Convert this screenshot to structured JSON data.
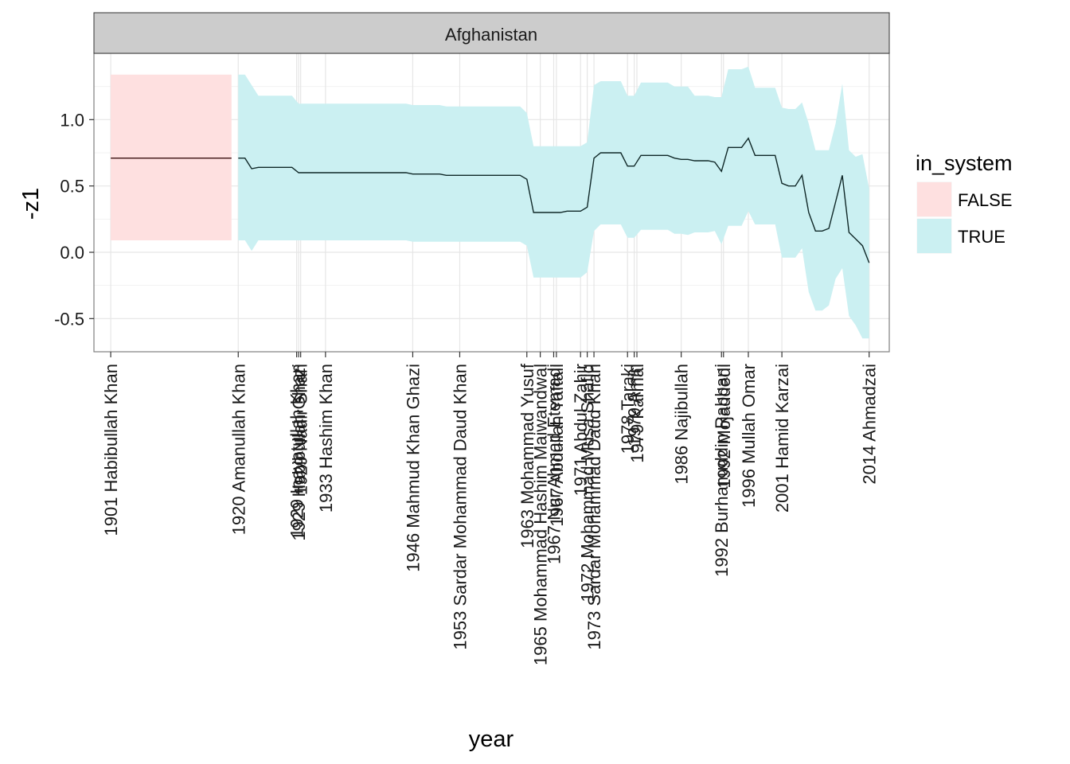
{
  "chart_data": {
    "type": "area",
    "facet_label": "Afghanistan",
    "xlabel": "year",
    "ylabel": "-z1",
    "xlim": [
      1898.5,
      2017
    ],
    "ylim": [
      -0.75,
      1.5
    ],
    "y_ticks": [
      -0.5,
      0.0,
      0.5,
      1.0
    ],
    "y_tick_labels": [
      "-0.5",
      "0.0",
      "0.5",
      "1.0"
    ],
    "grid": true,
    "legend": {
      "title": "in_system",
      "position": "right",
      "entries": [
        {
          "label": "FALSE",
          "color": "#fee0e0"
        },
        {
          "label": "TRUE",
          "color": "#cbf0f2"
        }
      ]
    },
    "x_ticks": [
      {
        "year": 1901,
        "label": "1901 Habibullah Khan"
      },
      {
        "year": 1920,
        "label": "1920 Amanullah Khan"
      },
      {
        "year": 1928.7,
        "label": "1929 Inayatullah Khan"
      },
      {
        "year": 1929,
        "label": "1929 Habibullah Ghazi"
      },
      {
        "year": 1929.3,
        "label": "1929 Nadir Shah"
      },
      {
        "year": 1933,
        "label": "1933 Hashim Khan"
      },
      {
        "year": 1946,
        "label": "1946 Mahmud Khan Ghazi"
      },
      {
        "year": 1953,
        "label": "1953 Sardar Mohammad Daud Khan"
      },
      {
        "year": 1963,
        "label": "1963 Mohammad Yusuf"
      },
      {
        "year": 1965,
        "label": "1965 Mohammad Hashim Maiwandwal"
      },
      {
        "year": 1967,
        "label": "1967 Nur Ahmad Etemadi"
      },
      {
        "year": 1967.4,
        "label": "1967 Abdullah Yaftali"
      },
      {
        "year": 1971,
        "label": "1971 Abdul Zahir"
      },
      {
        "year": 1972,
        "label": "1972 Mohammad Musa Shafiq"
      },
      {
        "year": 1973,
        "label": "1973 Sardar Mohammad Daud Khan"
      },
      {
        "year": 1978,
        "label": "1978 Taraki"
      },
      {
        "year": 1979,
        "label": "1979 Amin"
      },
      {
        "year": 1979.4,
        "label": "1979 Karmal"
      },
      {
        "year": 1986,
        "label": "1986 Najibullah"
      },
      {
        "year": 1992,
        "label": "1992 Burhanuddin Rabbani"
      },
      {
        "year": 1992.3,
        "label": "1992 Mojaddedi"
      },
      {
        "year": 1996,
        "label": "1996 Mullah Omar"
      },
      {
        "year": 2001,
        "label": "2001 Hamid Karzai"
      },
      {
        "year": 2014,
        "label": "2014 Ahmadzai"
      }
    ],
    "series": [
      {
        "name": "FALSE",
        "color": "#fee0e0",
        "x": [
          1901,
          1919
        ],
        "y": [
          0.71,
          0.71
        ],
        "lower": [
          0.09,
          0.09
        ],
        "upper": [
          1.34,
          1.34
        ]
      },
      {
        "name": "TRUE",
        "color": "#cbf0f2",
        "x": [
          1920,
          1921,
          1922,
          1923,
          1924,
          1925,
          1926,
          1927,
          1928,
          1929,
          1930,
          1931,
          1932,
          1933,
          1934,
          1935,
          1936,
          1937,
          1938,
          1939,
          1940,
          1941,
          1942,
          1943,
          1944,
          1945,
          1946,
          1947,
          1948,
          1949,
          1950,
          1951,
          1952,
          1953,
          1954,
          1955,
          1956,
          1957,
          1958,
          1959,
          1960,
          1961,
          1962,
          1963,
          1964,
          1965,
          1966,
          1967,
          1968,
          1969,
          1970,
          1971,
          1972,
          1973,
          1974,
          1975,
          1976,
          1977,
          1978,
          1979,
          1980,
          1981,
          1982,
          1983,
          1984,
          1985,
          1986,
          1987,
          1988,
          1989,
          1990,
          1991,
          1992,
          1993,
          1994,
          1995,
          1996,
          1997,
          1998,
          1999,
          2000,
          2001,
          2002,
          2003,
          2004,
          2005,
          2006,
          2007,
          2008,
          2009,
          2010,
          2011,
          2012,
          2013,
          2014
        ],
        "y": [
          0.71,
          0.71,
          0.63,
          0.64,
          0.64,
          0.64,
          0.64,
          0.64,
          0.64,
          0.6,
          0.6,
          0.6,
          0.6,
          0.6,
          0.6,
          0.6,
          0.6,
          0.6,
          0.6,
          0.6,
          0.6,
          0.6,
          0.6,
          0.6,
          0.6,
          0.6,
          0.59,
          0.59,
          0.59,
          0.59,
          0.59,
          0.58,
          0.58,
          0.58,
          0.58,
          0.58,
          0.58,
          0.58,
          0.58,
          0.58,
          0.58,
          0.58,
          0.58,
          0.55,
          0.3,
          0.3,
          0.3,
          0.3,
          0.3,
          0.31,
          0.31,
          0.31,
          0.34,
          0.71,
          0.75,
          0.75,
          0.75,
          0.75,
          0.65,
          0.65,
          0.73,
          0.73,
          0.73,
          0.73,
          0.73,
          0.71,
          0.7,
          0.7,
          0.69,
          0.69,
          0.69,
          0.68,
          0.61,
          0.79,
          0.79,
          0.79,
          0.86,
          0.73,
          0.73,
          0.73,
          0.73,
          0.52,
          0.5,
          0.5,
          0.58,
          0.3,
          0.16,
          0.16,
          0.18,
          0.38,
          0.58,
          0.15,
          0.1,
          0.05,
          -0.08
        ],
        "lower": [
          0.09,
          0.09,
          0.01,
          0.09,
          0.09,
          0.09,
          0.09,
          0.09,
          0.09,
          0.09,
          0.09,
          0.09,
          0.09,
          0.09,
          0.09,
          0.09,
          0.09,
          0.09,
          0.09,
          0.09,
          0.09,
          0.09,
          0.09,
          0.09,
          0.09,
          0.09,
          0.08,
          0.08,
          0.08,
          0.08,
          0.08,
          0.08,
          0.08,
          0.08,
          0.08,
          0.08,
          0.08,
          0.08,
          0.08,
          0.08,
          0.08,
          0.08,
          0.08,
          0.05,
          -0.19,
          -0.19,
          -0.19,
          -0.19,
          -0.19,
          -0.19,
          -0.19,
          -0.19,
          -0.15,
          0.16,
          0.21,
          0.21,
          0.21,
          0.21,
          0.11,
          0.11,
          0.17,
          0.17,
          0.17,
          0.17,
          0.17,
          0.14,
          0.14,
          0.13,
          0.15,
          0.15,
          0.15,
          0.16,
          0.06,
          0.2,
          0.2,
          0.2,
          0.31,
          0.21,
          0.21,
          0.21,
          0.21,
          -0.04,
          -0.04,
          -0.04,
          0.03,
          -0.3,
          -0.44,
          -0.44,
          -0.4,
          -0.2,
          -0.12,
          -0.48,
          -0.55,
          -0.65,
          -0.65
        ],
        "upper": [
          1.34,
          1.34,
          1.26,
          1.18,
          1.18,
          1.18,
          1.18,
          1.18,
          1.18,
          1.12,
          1.12,
          1.12,
          1.12,
          1.12,
          1.12,
          1.12,
          1.12,
          1.12,
          1.12,
          1.12,
          1.12,
          1.12,
          1.12,
          1.12,
          1.12,
          1.12,
          1.11,
          1.11,
          1.11,
          1.11,
          1.11,
          1.1,
          1.1,
          1.1,
          1.1,
          1.1,
          1.1,
          1.1,
          1.1,
          1.1,
          1.1,
          1.1,
          1.1,
          1.05,
          0.8,
          0.8,
          0.8,
          0.8,
          0.8,
          0.8,
          0.8,
          0.8,
          0.83,
          1.26,
          1.29,
          1.29,
          1.29,
          1.29,
          1.18,
          1.18,
          1.28,
          1.28,
          1.28,
          1.28,
          1.28,
          1.25,
          1.25,
          1.25,
          1.18,
          1.18,
          1.18,
          1.17,
          1.17,
          1.38,
          1.38,
          1.38,
          1.4,
          1.24,
          1.24,
          1.24,
          1.24,
          1.09,
          1.08,
          1.08,
          1.13,
          0.97,
          0.77,
          0.77,
          0.77,
          0.97,
          1.27,
          0.77,
          0.72,
          0.74,
          0.48
        ]
      }
    ]
  }
}
